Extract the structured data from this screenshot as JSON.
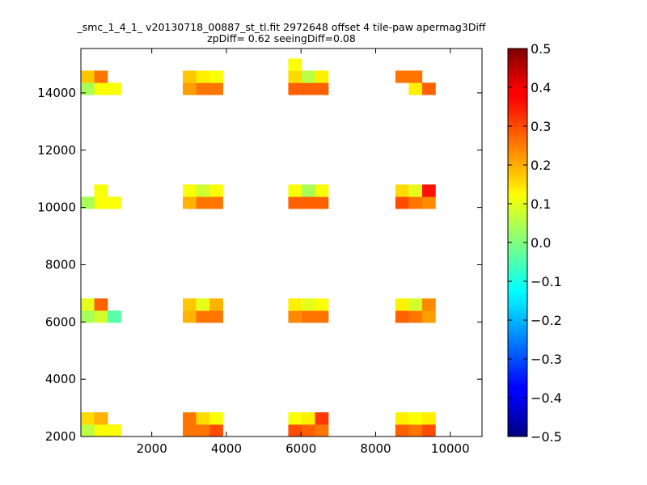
{
  "chart_data": {
    "type": "heatmap",
    "title_line1": "_smc_1_4_1_ v20130718_00887_st_tl.fit 2972648 offset 4 tile-paw apermag3Diff",
    "title_line2": "zpDiff= 0.62 seeingDiff=0.08",
    "xlabel": "",
    "ylabel": "",
    "xlim": [
      100,
      10850
    ],
    "ylim": [
      2000,
      15550
    ],
    "xticks": [
      2000,
      4000,
      6000,
      8000,
      10000
    ],
    "yticks": [
      2000,
      4000,
      6000,
      8000,
      10000,
      12000,
      14000
    ],
    "grid": false,
    "colorscale": "jet",
    "clim": [
      -0.5,
      0.5
    ],
    "colorbar_ticks": [
      -0.5,
      -0.4,
      -0.3,
      -0.2,
      -0.1,
      0.0,
      0.1,
      0.2,
      0.3,
      0.4,
      0.5
    ],
    "cell_size": [
      358,
      422
    ],
    "tile_x0": [
      100,
      2832,
      5658,
      8528
    ],
    "tile_y0": [
      2000,
      5977,
      9955,
      13933
    ],
    "cells": [
      [
        0,
        3,
        0,
        0.04
      ],
      [
        0,
        3,
        1,
        0.12
      ],
      [
        0,
        3,
        2,
        0.12
      ],
      [
        0,
        3,
        3,
        0.18
      ],
      [
        0,
        3,
        4,
        0.26
      ],
      [
        1,
        3,
        0,
        0.22
      ],
      [
        1,
        3,
        1,
        0.26
      ],
      [
        1,
        3,
        2,
        0.26
      ],
      [
        1,
        3,
        3,
        0.18
      ],
      [
        1,
        3,
        4,
        0.14
      ],
      [
        1,
        3,
        5,
        0.12
      ],
      [
        2,
        3,
        0,
        0.28
      ],
      [
        2,
        3,
        1,
        0.28
      ],
      [
        2,
        3,
        2,
        0.28
      ],
      [
        2,
        3,
        3,
        0.16
      ],
      [
        2,
        3,
        4,
        0.06
      ],
      [
        2,
        3,
        5,
        0.14
      ],
      [
        2,
        3,
        6,
        0.12
      ],
      [
        3,
        3,
        1,
        0.14
      ],
      [
        3,
        3,
        2,
        0.28
      ],
      [
        3,
        3,
        3,
        0.26
      ],
      [
        3,
        3,
        4,
        0.26
      ],
      [
        0,
        2,
        0,
        0.04
      ],
      [
        0,
        2,
        1,
        0.12
      ],
      [
        0,
        2,
        2,
        0.12
      ],
      [
        0,
        2,
        4,
        0.12
      ],
      [
        1,
        2,
        0,
        0.2
      ],
      [
        1,
        2,
        1,
        0.26
      ],
      [
        1,
        2,
        2,
        0.26
      ],
      [
        1,
        2,
        3,
        0.12
      ],
      [
        1,
        2,
        4,
        0.08
      ],
      [
        1,
        2,
        5,
        0.12
      ],
      [
        2,
        2,
        0,
        0.28
      ],
      [
        2,
        2,
        1,
        0.28
      ],
      [
        2,
        2,
        2,
        0.28
      ],
      [
        2,
        2,
        3,
        0.12
      ],
      [
        2,
        2,
        4,
        0.04
      ],
      [
        2,
        2,
        5,
        0.12
      ],
      [
        3,
        2,
        0,
        0.3
      ],
      [
        3,
        2,
        1,
        0.26
      ],
      [
        3,
        2,
        2,
        0.24
      ],
      [
        3,
        2,
        3,
        0.16
      ],
      [
        3,
        2,
        4,
        0.1
      ],
      [
        3,
        2,
        5,
        0.36
      ],
      [
        0,
        1,
        0,
        0.04
      ],
      [
        0,
        1,
        1,
        0.08
      ],
      [
        0,
        1,
        2,
        -0.04
      ],
      [
        0,
        1,
        3,
        0.1
      ],
      [
        0,
        1,
        4,
        0.28
      ],
      [
        1,
        1,
        0,
        0.2
      ],
      [
        1,
        1,
        1,
        0.26
      ],
      [
        1,
        1,
        2,
        0.26
      ],
      [
        1,
        1,
        3,
        0.18
      ],
      [
        1,
        1,
        4,
        0.1
      ],
      [
        1,
        1,
        5,
        0.2
      ],
      [
        2,
        1,
        0,
        0.24
      ],
      [
        2,
        1,
        1,
        0.26
      ],
      [
        2,
        1,
        2,
        0.26
      ],
      [
        2,
        1,
        3,
        0.14
      ],
      [
        2,
        1,
        4,
        0.1
      ],
      [
        2,
        1,
        5,
        0.12
      ],
      [
        3,
        1,
        0,
        0.28
      ],
      [
        3,
        1,
        1,
        0.26
      ],
      [
        3,
        1,
        2,
        0.22
      ],
      [
        3,
        1,
        3,
        0.14
      ],
      [
        3,
        1,
        4,
        0.08
      ],
      [
        3,
        1,
        5,
        0.24
      ],
      [
        0,
        0,
        0,
        0.06
      ],
      [
        0,
        0,
        1,
        0.12
      ],
      [
        0,
        0,
        2,
        0.12
      ],
      [
        0,
        0,
        3,
        0.16
      ],
      [
        0,
        0,
        4,
        0.2
      ],
      [
        1,
        0,
        0,
        0.26
      ],
      [
        1,
        0,
        1,
        0.26
      ],
      [
        1,
        0,
        2,
        0.3
      ],
      [
        1,
        0,
        3,
        0.26
      ],
      [
        1,
        0,
        4,
        0.16
      ],
      [
        1,
        0,
        5,
        0.12
      ],
      [
        2,
        0,
        0,
        0.3
      ],
      [
        2,
        0,
        1,
        0.28
      ],
      [
        2,
        0,
        2,
        0.26
      ],
      [
        2,
        0,
        3,
        0.12
      ],
      [
        2,
        0,
        4,
        0.14
      ],
      [
        2,
        0,
        5,
        0.32
      ],
      [
        3,
        0,
        0,
        0.28
      ],
      [
        3,
        0,
        1,
        0.26
      ],
      [
        3,
        0,
        2,
        0.3
      ],
      [
        3,
        0,
        3,
        0.14
      ],
      [
        3,
        0,
        4,
        0.12
      ],
      [
        3,
        0,
        5,
        0.14
      ]
    ]
  }
}
